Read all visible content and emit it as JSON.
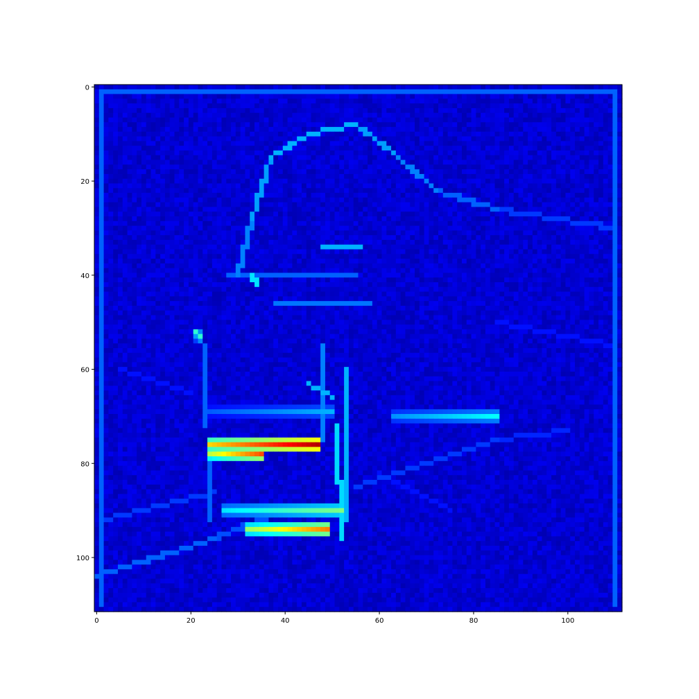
{
  "chart_data": {
    "type": "heatmap",
    "title": "",
    "xlabel": "",
    "ylabel": "",
    "colormap": "jet",
    "colormap_stops": [
      "#00007f",
      "#0000ff",
      "#00ffff",
      "#ffff00",
      "#ff0000",
      "#7f0000"
    ],
    "image_shape": [
      112,
      112
    ],
    "xlim": [
      -0.5,
      111.5
    ],
    "ylim": [
      111.5,
      -0.5
    ],
    "y_axis_inverted": true,
    "x_ticks": [
      0,
      20,
      40,
      60,
      80,
      100
    ],
    "x_tick_labels": [
      "0",
      "20",
      "40",
      "60",
      "80",
      "100"
    ],
    "y_ticks": [
      0,
      20,
      40,
      60,
      80,
      100
    ],
    "y_tick_labels": [
      "0",
      "20",
      "40",
      "60",
      "80",
      "100"
    ],
    "grid": false,
    "legend": "none",
    "background_value": 0.05,
    "hotspots": [
      {
        "row": 76,
        "col_start": 24,
        "col_end": 47,
        "peak": 0.95,
        "desc_row": "brightest band"
      },
      {
        "row": 78,
        "col_start": 24,
        "col_end": 35,
        "peak": 0.8
      },
      {
        "row": 94,
        "col_start": 32,
        "col_end": 49,
        "peak": 0.75
      },
      {
        "row": 90,
        "col_start": 27,
        "col_end": 52,
        "peak": 0.5
      },
      {
        "row": 69,
        "col_start": 23,
        "col_end": 50,
        "peak": 0.3
      },
      {
        "row": 70,
        "col_start": 63,
        "col_end": 85,
        "peak": 0.38
      },
      {
        "row": 53,
        "col_start": 21,
        "col_end": 22,
        "peak": 0.4
      }
    ]
  }
}
